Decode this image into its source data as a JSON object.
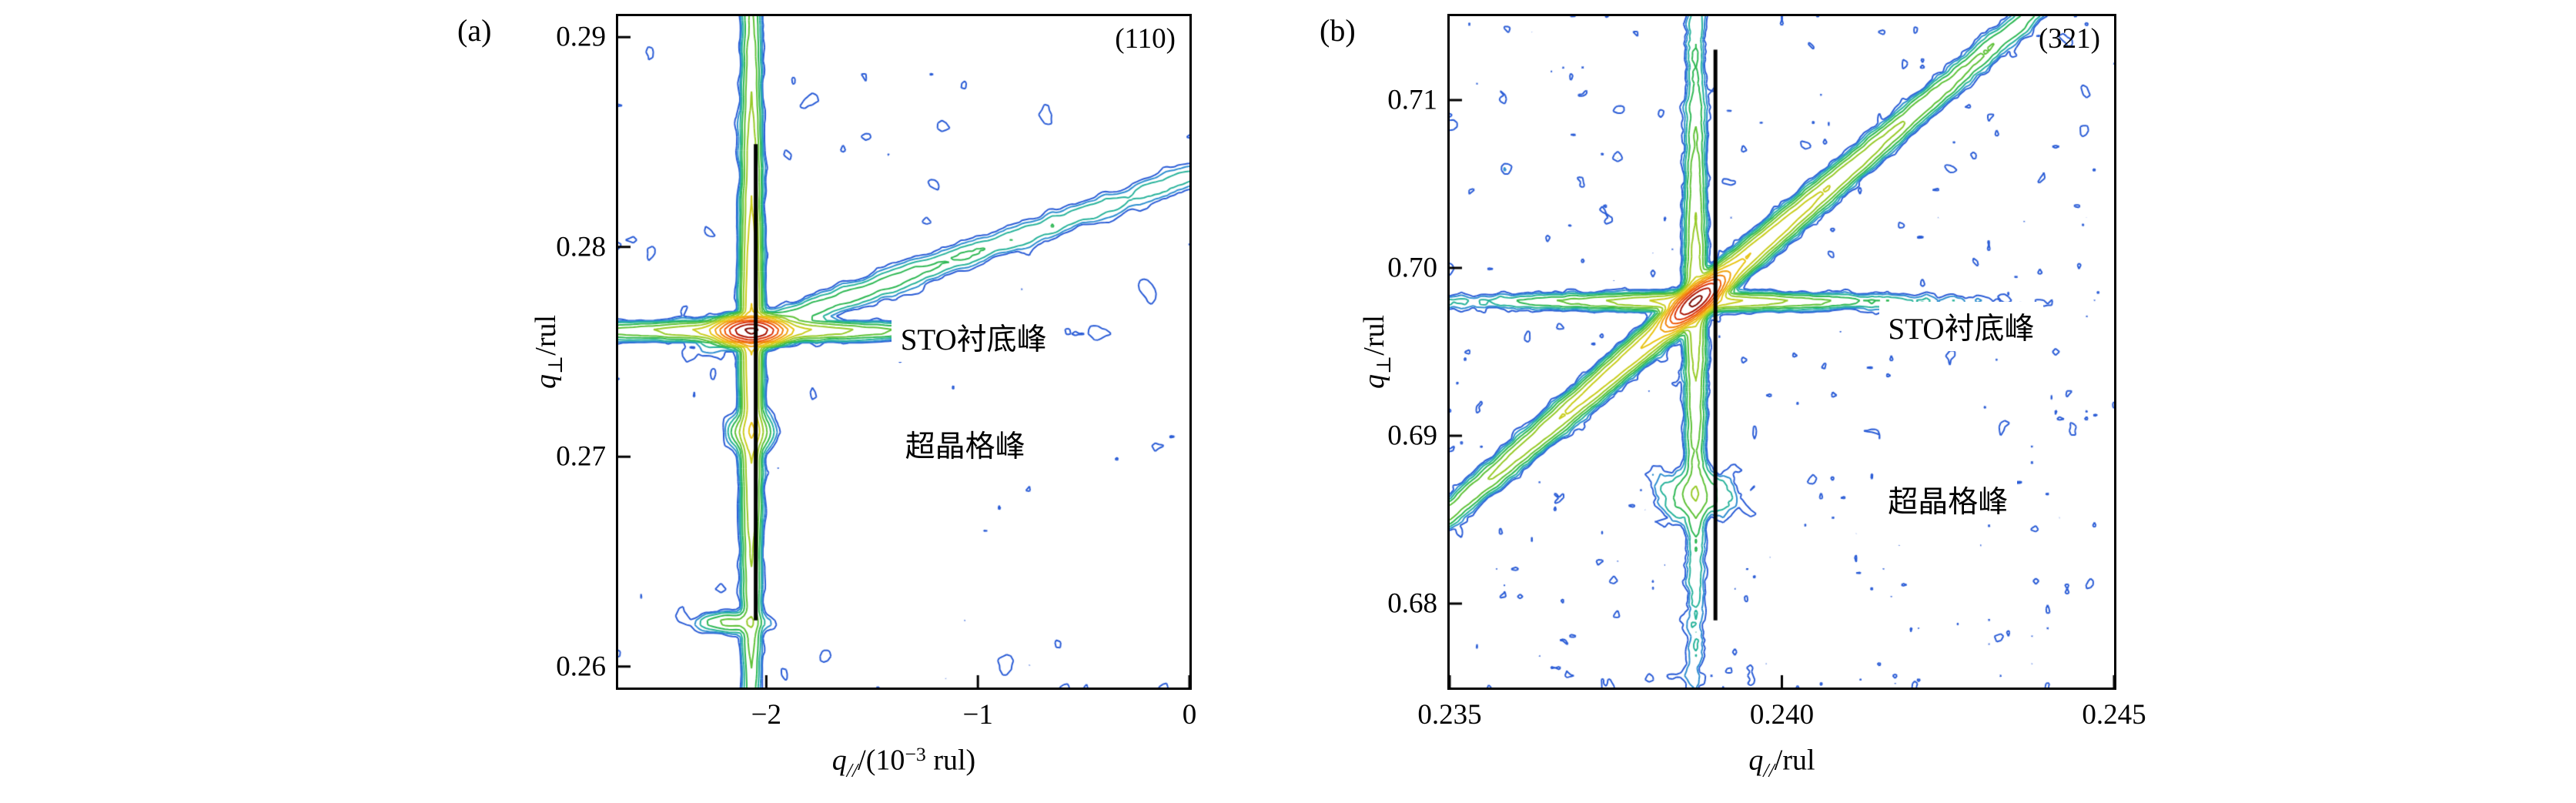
{
  "figure": {
    "background": "#ffffff"
  },
  "chart_data": [
    {
      "type": "contour",
      "panel_label": "(a)",
      "reflection": "(110)",
      "xlabel": "q///(10⁻³ rul)",
      "xlabel_parts": {
        "var": "q",
        "sub": "//",
        "mid": "/(10",
        "sup": "−3",
        "tail": " rul)"
      },
      "ylabel": "q⊥/rul",
      "ylabel_parts": {
        "var": "q",
        "sub": "⊥",
        "mid": "/rul"
      },
      "xlim": [
        -2.7,
        0
      ],
      "ylim": [
        0.259,
        0.291
      ],
      "x_ticks": [
        -2,
        -1,
        0
      ],
      "x_tick_labels": [
        "−2",
        "−1",
        "0"
      ],
      "y_ticks": [
        0.26,
        0.27,
        0.28,
        0.29
      ],
      "y_tick_labels": [
        "0.26",
        "0.27",
        "0.28",
        "0.29"
      ],
      "substrate_peak": {
        "label": "STO衬底峰",
        "x": -2.07,
        "y": 0.276
      },
      "superlattice_peak": {
        "label": "超晶格峰",
        "x": -2.07,
        "y": 0.2712
      },
      "marker_line": {
        "x": -2.05,
        "y1": 0.2622,
        "y2": 0.2849
      },
      "annotations": [
        {
          "text": "STO衬底峰",
          "x": -1.02,
          "y": 0.2757
        },
        {
          "text": "超晶格峰",
          "x": -1.06,
          "y": 0.2706
        }
      ],
      "contour_levels": [
        0.6,
        1.05,
        1.84,
        3.22,
        5.63,
        9.85,
        17.2,
        30.2,
        52.8,
        92.4,
        162,
        283,
        495,
        866
      ],
      "contour_colors": [
        "#2a5cd6",
        "#2f8fd0",
        "#28b39b",
        "#2eb854",
        "#5fc238",
        "#97ca28",
        "#c9cd1d",
        "#e9c414",
        "#f0a30f",
        "#f1800a",
        "#ee5907",
        "#d93105",
        "#ab1503",
        "#7c0a02"
      ],
      "render": {
        "grid": 150,
        "noise": {
          "seed": 11,
          "amp": 1.0,
          "smooth": 2
        },
        "features": [
          {
            "kind": "gauss",
            "x": -2.07,
            "y": 0.276,
            "sx": 0.034,
            "sy": 0.011,
            "amp": 950,
            "rot": 0
          },
          {
            "kind": "gauss",
            "x": -2.07,
            "y": 0.2712,
            "sx": 0.028,
            "sy": 0.02,
            "amp": 14,
            "rot": 0
          },
          {
            "kind": "gauss",
            "x": -2.17,
            "y": 0.2621,
            "sx": 0.05,
            "sy": 0.012,
            "amp": 7,
            "rot": 0
          },
          {
            "kind": "vstreak",
            "x": -2.07,
            "y": 0.276,
            "w": 0.013,
            "amp": 35,
            "decay": 0.28
          },
          {
            "kind": "hstreak",
            "x": -2.07,
            "y": 0.276,
            "w": 0.01,
            "amp": 40,
            "decay": 0.13
          },
          {
            "kind": "dstreak",
            "x": -2.07,
            "y": 0.276,
            "slope": 0.3,
            "w": 0.016,
            "amp": 5.5,
            "decayPos": 0.9,
            "decayNeg": 0.05
          }
        ]
      }
    },
    {
      "type": "contour",
      "panel_label": "(b)",
      "reflection": "(321)",
      "xlabel": "q///rul",
      "xlabel_parts": {
        "var": "q",
        "sub": "//",
        "mid": "/rul",
        "sup": "",
        "tail": ""
      },
      "ylabel": "q⊥/rul",
      "ylabel_parts": {
        "var": "q",
        "sub": "⊥",
        "mid": "/rul"
      },
      "xlim": [
        0.235,
        0.245
      ],
      "ylim": [
        0.675,
        0.715
      ],
      "x_ticks": [
        0.235,
        0.24,
        0.245
      ],
      "x_tick_labels": [
        "0.235",
        "0.240",
        "0.245"
      ],
      "y_ticks": [
        0.68,
        0.69,
        0.7,
        0.71
      ],
      "y_tick_labels": [
        "0.68",
        "0.69",
        "0.70",
        "0.71"
      ],
      "substrate_peak": {
        "label": "STO衬底峰",
        "x": 0.2387,
        "y": 0.698
      },
      "superlattice_peak": {
        "label": "超晶格峰",
        "x": 0.2387,
        "y": 0.6865
      },
      "marker_line": {
        "x": 0.239,
        "y1": 0.679,
        "y2": 0.713
      },
      "annotations": [
        {
          "text": "STO衬底峰",
          "x": 0.2427,
          "y": 0.6965
        },
        {
          "text": "超晶格峰",
          "x": 0.2425,
          "y": 0.6862
        }
      ],
      "contour_levels": [
        0.6,
        1.05,
        1.84,
        3.22,
        5.63,
        9.85,
        17.2,
        30.2,
        52.8,
        92.4,
        162,
        283,
        495,
        866
      ],
      "contour_colors": [
        "#2a5cd6",
        "#2f8fd0",
        "#28b39b",
        "#2eb854",
        "#5fc238",
        "#97ca28",
        "#c9cd1d",
        "#e9c414",
        "#f0a30f",
        "#f1800a",
        "#ee5907",
        "#d93105",
        "#ab1503",
        "#7c0a02"
      ],
      "render": {
        "grid": 170,
        "noise": {
          "seed": 23,
          "amp": 1.15,
          "smooth": 1
        },
        "features": [
          {
            "kind": "gauss",
            "x": 0.2387,
            "y": 0.698,
            "sx": 0.034,
            "sy": 0.011,
            "amp": 950,
            "rot": 40
          },
          {
            "kind": "gauss",
            "x": 0.2387,
            "y": 0.6865,
            "sx": 0.045,
            "sy": 0.03,
            "amp": 6,
            "rot": 0
          },
          {
            "kind": "vstreak",
            "x": 0.2387,
            "y": 0.698,
            "w": 0.012,
            "amp": 18,
            "decay": 0.22
          },
          {
            "kind": "hstreak",
            "x": 0.2387,
            "y": 0.698,
            "w": 0.009,
            "amp": 32,
            "decay": 0.12
          },
          {
            "kind": "dstreak",
            "x": 0.2387,
            "y": 0.698,
            "slope": 0.85,
            "w": 0.014,
            "amp": 45,
            "decayPos": 0.28,
            "decayNeg": 0.28
          }
        ]
      }
    }
  ]
}
